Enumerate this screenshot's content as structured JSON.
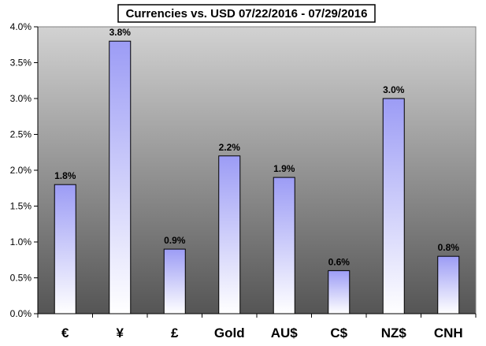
{
  "chart_data": {
    "type": "bar",
    "title": "Currencies vs. USD 07/22/2016 - 07/29/2016",
    "categories": [
      "€",
      "¥",
      "£",
      "Gold",
      "AU$",
      "C$",
      "NZ$",
      "CNH"
    ],
    "values": [
      1.8,
      3.8,
      0.9,
      2.2,
      1.9,
      0.6,
      3.0,
      0.8
    ],
    "data_labels": [
      "1.8%",
      "3.8%",
      "0.9%",
      "2.2%",
      "1.9%",
      "0.6%",
      "3.0%",
      "0.8%"
    ],
    "y_ticks": [
      "0.0%",
      "0.5%",
      "1.0%",
      "1.5%",
      "2.0%",
      "2.5%",
      "3.0%",
      "3.5%",
      "4.0%"
    ],
    "ylim": [
      0,
      4.0
    ],
    "xlabel": "",
    "ylabel": "",
    "grid": false,
    "colors": {
      "bar_top": "#9c9cf5",
      "bar_bottom": "#ffffff",
      "plot_top": "#d2d2d2",
      "plot_bottom": "#555555"
    }
  }
}
